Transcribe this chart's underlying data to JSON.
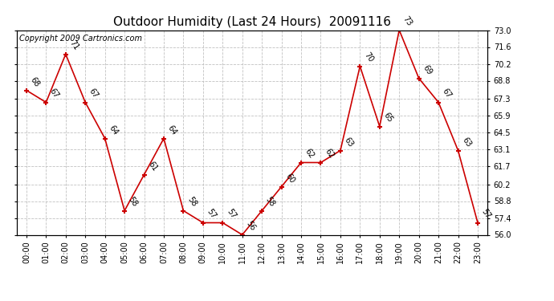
{
  "title": "Outdoor Humidity (Last 24 Hours)  20091116",
  "copyright": "Copyright 2009 Cartronics.com",
  "hours": [
    "00:00",
    "01:00",
    "02:00",
    "03:00",
    "04:00",
    "05:00",
    "06:00",
    "07:00",
    "08:00",
    "09:00",
    "10:00",
    "11:00",
    "12:00",
    "13:00",
    "14:00",
    "15:00",
    "16:00",
    "17:00",
    "18:00",
    "19:00",
    "20:00",
    "21:00",
    "22:00",
    "23:00"
  ],
  "values": [
    68,
    67,
    71,
    67,
    64,
    58,
    61,
    64,
    58,
    57,
    57,
    56,
    58,
    60,
    62,
    62,
    63,
    70,
    65,
    73,
    69,
    67,
    63,
    57
  ],
  "line_color": "#cc0000",
  "marker_color": "#cc0000",
  "bg_color": "#ffffff",
  "plot_bg_color": "#ffffff",
  "grid_color": "#bbbbbb",
  "title_fontsize": 11,
  "copyright_fontsize": 7,
  "label_fontsize": 7,
  "tick_fontsize": 7,
  "ylim_min": 56.0,
  "ylim_max": 73.0,
  "yticks": [
    56.0,
    57.4,
    58.8,
    60.2,
    61.7,
    63.1,
    64.5,
    65.9,
    67.3,
    68.8,
    70.2,
    71.6,
    73.0
  ]
}
